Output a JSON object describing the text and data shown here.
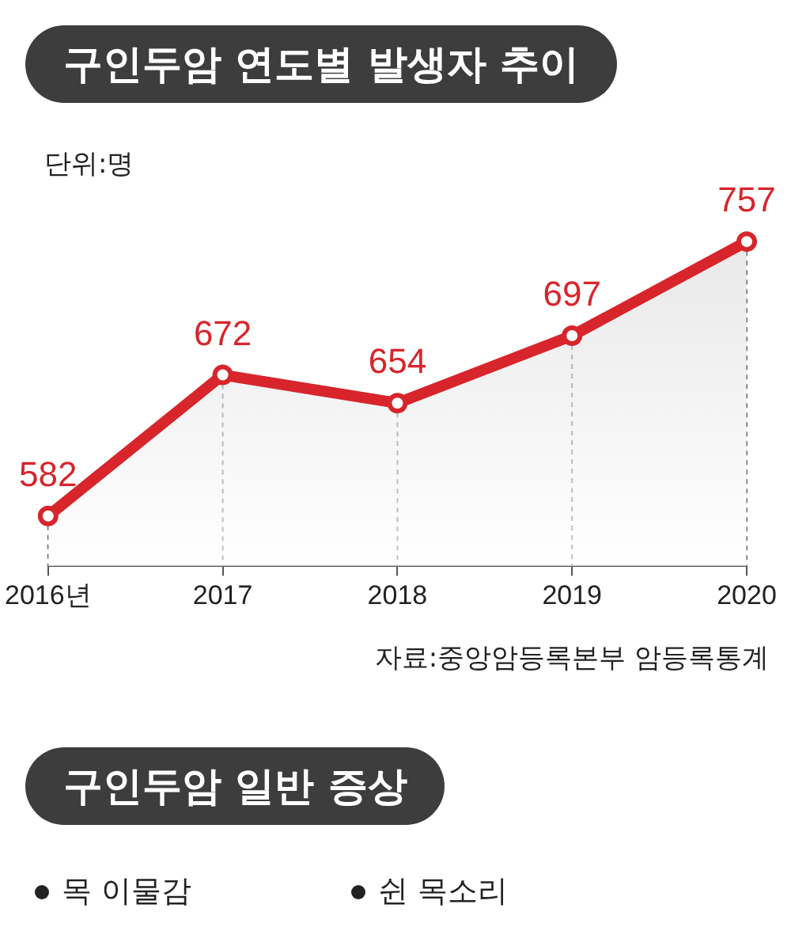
{
  "chart_data": [
    {
      "type": "area",
      "title": "구인두암 연도별 발생자 추이",
      "ylabel": "단위:명",
      "categories": [
        "2016년",
        "2017",
        "2018",
        "2019",
        "2020"
      ],
      "values": [
        582,
        672,
        654,
        697,
        757
      ],
      "color": "#d7252b",
      "tick_labels": "x",
      "marker": "circle",
      "line_style": "solid",
      "data_labels": true,
      "annotations": [
        "자료:중앙암등록본부 암등록통계"
      ]
    },
    {
      "type": "other",
      "title": "구인두암 일반 증상",
      "annotations": [
        "목 이물감",
        "쉰 목소리"
      ]
    }
  ]
}
